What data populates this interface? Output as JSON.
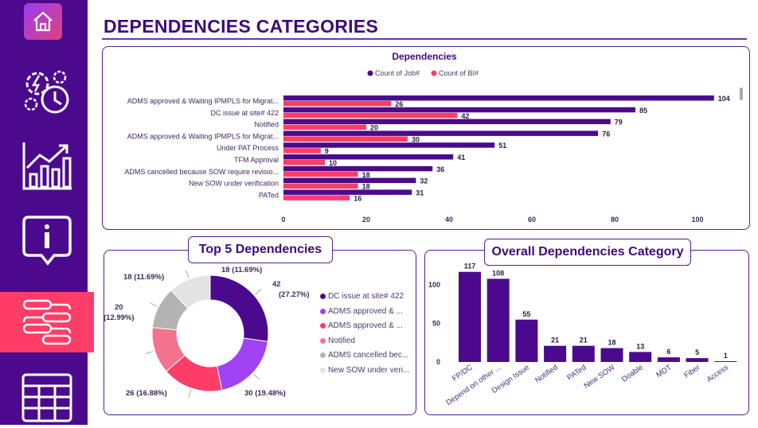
{
  "nav": {
    "items": [
      {
        "name": "home",
        "icon": "home-icon"
      },
      {
        "name": "process",
        "icon": "gear-clock-icon"
      },
      {
        "name": "growth",
        "icon": "bar-chart-icon"
      },
      {
        "name": "info",
        "icon": "info-icon"
      },
      {
        "name": "dependencies",
        "icon": "workflow-icon",
        "active": true
      },
      {
        "name": "table",
        "icon": "table-icon"
      }
    ]
  },
  "page": {
    "title": "DEPENDENCIES CATEGORIES"
  },
  "colors": {
    "purple": "#4b0a8e",
    "pink": "#ff3d67",
    "accent": "#3d0a7a"
  },
  "chart_data": [
    {
      "type": "bar",
      "orientation": "horizontal",
      "title": "Dependencies",
      "legend": [
        "Count of Job#",
        "Count of BI#"
      ],
      "legend_position": "top-center",
      "categories": [
        "ADMS approved & Waiting IPMPLS for Migrat...",
        "DC issue at site# 422",
        "Notified",
        "ADMS approved & Waiting IPMPLS for Migrat...",
        "Under PAT Process",
        "TFM Approval",
        "ADMS cancelled because SOW require revisio...",
        "New SOW under verification",
        "PATed"
      ],
      "series": [
        {
          "name": "Count of Job#",
          "color": "#4b0a8e",
          "values": [
            104,
            85,
            79,
            76,
            51,
            41,
            36,
            32,
            31
          ]
        },
        {
          "name": "Count of BI#",
          "color": "#ff3d67",
          "values": [
            26,
            42,
            20,
            30,
            9,
            10,
            18,
            18,
            16
          ]
        }
      ],
      "xticks": [
        "0",
        "20",
        "40",
        "60",
        "80",
        "100"
      ],
      "xlim": [
        0,
        110
      ]
    },
    {
      "type": "pie",
      "title": "Top 5 Dependencies",
      "slices": [
        {
          "label": "DC issue at site# 422",
          "value": 42,
          "display": "42\n(27.27%)",
          "color": "#4b0a8e"
        },
        {
          "label": "ADMS approved & ...",
          "value": 30,
          "display": "30 (19.48%)",
          "color": "#a142f4"
        },
        {
          "label": "ADMS approved & ...",
          "value": 26,
          "display": "26 (16.88%)",
          "color": "#ff3d67"
        },
        {
          "label": "Notified",
          "value": 20,
          "display": "20\n(12.99%)",
          "color": "#f4738e"
        },
        {
          "label": "ADMS cancelled bec...",
          "value": 18,
          "display": "18 (11.69%)",
          "color": "#b3b3b3"
        },
        {
          "label": "New SOW under veri...",
          "value": 18,
          "display": "18 (11.69%)",
          "color": "#e3e3e3"
        }
      ]
    },
    {
      "type": "bar",
      "title": "Overall Dependencies Category",
      "categories": [
        "FP/DC",
        "Depend on other ...",
        "Design Issue",
        "Notified",
        "PATed",
        "New SOW",
        "Doable",
        "MDT",
        "Fiber",
        "Access"
      ],
      "values": [
        117,
        108,
        55,
        21,
        21,
        18,
        13,
        6,
        5,
        1
      ],
      "yticks": [
        "0",
        "50",
        "100"
      ],
      "ylim": [
        0,
        125
      ]
    }
  ]
}
